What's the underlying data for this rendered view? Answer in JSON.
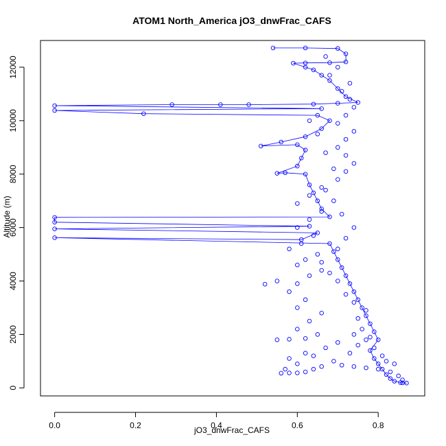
{
  "chart_data": {
    "type": "scatter",
    "title": "ATOM1 North_America jO3_dnwFrac_CAFS",
    "xlabel": "jO3_dnwFrac_CAFS",
    "ylabel": "Altitude (m)",
    "xlim": [
      -0.035,
      0.915
    ],
    "ylim": [
      -300,
      13000
    ],
    "xticks": [
      0.0,
      0.2,
      0.4,
      0.6,
      0.8
    ],
    "xtick_labels": [
      "0.0",
      "0.2",
      "0.4",
      "0.6",
      "0.8"
    ],
    "yticks": [
      0,
      2000,
      4000,
      6000,
      8000,
      10000,
      12000
    ],
    "ytick_labels": [
      "0",
      "2000",
      "4000",
      "6000",
      "8000",
      "10000",
      "12000"
    ],
    "grid": false,
    "colors": {
      "series": "#0000ff",
      "axes": "#000000"
    },
    "series": [
      {
        "marker": "open-circle",
        "lines": true,
        "points": [
          [
            0.87,
            180
          ],
          [
            0.86,
            190
          ],
          [
            0.855,
            200
          ],
          [
            0.84,
            250
          ],
          [
            0.83,
            350
          ],
          [
            0.82,
            500
          ],
          [
            0.81,
            700
          ],
          [
            0.8,
            900
          ],
          [
            0.79,
            1100
          ],
          [
            0.78,
            1400
          ],
          [
            0.8,
            1800
          ],
          [
            0.79,
            2100
          ],
          [
            0.78,
            2400
          ],
          [
            0.77,
            2700
          ],
          [
            0.76,
            3000
          ],
          [
            0.75,
            3300
          ],
          [
            0.74,
            3600
          ],
          [
            0.73,
            3900
          ],
          [
            0.72,
            4200
          ],
          [
            0.71,
            4500
          ],
          [
            0.7,
            4800
          ],
          [
            0.69,
            5100
          ],
          [
            0.68,
            5400
          ],
          [
            0.0,
            5620
          ],
          [
            0.61,
            5550
          ],
          [
            0.65,
            5800
          ],
          [
            0.0,
            5950
          ],
          [
            0.63,
            6050
          ],
          [
            0.0,
            6200
          ],
          [
            0.0,
            6380
          ],
          [
            0.68,
            6400
          ],
          [
            0.66,
            6700
          ],
          [
            0.65,
            7000
          ],
          [
            0.64,
            7300
          ],
          [
            0.63,
            7600
          ],
          [
            0.62,
            8000
          ],
          [
            0.57,
            8050
          ],
          [
            0.55,
            8030
          ],
          [
            0.6,
            8300
          ],
          [
            0.61,
            8600
          ],
          [
            0.62,
            8900
          ],
          [
            0.6,
            9100
          ],
          [
            0.51,
            9050
          ],
          [
            0.56,
            9200
          ],
          [
            0.62,
            9400
          ],
          [
            0.66,
            9700
          ],
          [
            0.68,
            10000
          ],
          [
            0.65,
            10200
          ],
          [
            0.22,
            10260
          ],
          [
            0.0,
            10380
          ],
          [
            0.66,
            10450
          ],
          [
            0.0,
            10560
          ],
          [
            0.29,
            10600
          ],
          [
            0.41,
            10600
          ],
          [
            0.48,
            10600
          ],
          [
            0.64,
            10620
          ],
          [
            0.7,
            10650
          ],
          [
            0.75,
            10680
          ],
          [
            0.72,
            10900
          ],
          [
            0.7,
            11200
          ],
          [
            0.68,
            11500
          ],
          [
            0.66,
            11700
          ],
          [
            0.64,
            11900
          ],
          [
            0.62,
            12000
          ],
          [
            0.59,
            12150
          ],
          [
            0.62,
            12160
          ],
          [
            0.68,
            12170
          ],
          [
            0.72,
            12200
          ],
          [
            0.72,
            12500
          ],
          [
            0.7,
            12700
          ],
          [
            0.62,
            12720
          ],
          [
            0.54,
            12720
          ]
        ],
        "scatter": [
          [
            0.56,
            550
          ],
          [
            0.58,
            560
          ],
          [
            0.6,
            560
          ],
          [
            0.62,
            600
          ],
          [
            0.64,
            700
          ],
          [
            0.66,
            800
          ],
          [
            0.58,
            1100
          ],
          [
            0.62,
            1300
          ],
          [
            0.55,
            1800
          ],
          [
            0.58,
            1820
          ],
          [
            0.62,
            1850
          ],
          [
            0.65,
            2000
          ],
          [
            0.6,
            2200
          ],
          [
            0.63,
            2500
          ],
          [
            0.66,
            2800
          ],
          [
            0.6,
            3000
          ],
          [
            0.62,
            3300
          ],
          [
            0.58,
            3600
          ],
          [
            0.6,
            3900
          ],
          [
            0.52,
            3880
          ],
          [
            0.55,
            4000
          ],
          [
            0.63,
            4200
          ],
          [
            0.66,
            4400
          ],
          [
            0.6,
            4600
          ],
          [
            0.62,
            4800
          ],
          [
            0.65,
            5000
          ],
          [
            0.58,
            5200
          ],
          [
            0.61,
            5400
          ],
          [
            0.64,
            5700
          ],
          [
            0.6,
            6000
          ],
          [
            0.63,
            6300
          ],
          [
            0.66,
            6600
          ],
          [
            0.6,
            6900
          ],
          [
            0.63,
            7200
          ],
          [
            0.66,
            7500
          ],
          [
            0.7,
            7800
          ],
          [
            0.72,
            8100
          ],
          [
            0.74,
            8400
          ],
          [
            0.72,
            8700
          ],
          [
            0.7,
            9000
          ],
          [
            0.72,
            9300
          ],
          [
            0.74,
            9600
          ],
          [
            0.7,
            9900
          ],
          [
            0.72,
            10200
          ],
          [
            0.74,
            10500
          ],
          [
            0.73,
            10800
          ],
          [
            0.71,
            11100
          ],
          [
            0.73,
            11400
          ],
          [
            0.68,
            11700
          ],
          [
            0.7,
            12000
          ],
          [
            0.67,
            12400
          ],
          [
            0.75,
            2600
          ],
          [
            0.77,
            2900
          ],
          [
            0.74,
            3200
          ],
          [
            0.72,
            3500
          ],
          [
            0.7,
            4000
          ],
          [
            0.68,
            4300
          ],
          [
            0.66,
            4700
          ],
          [
            0.7,
            5200
          ],
          [
            0.72,
            5600
          ],
          [
            0.74,
            6000
          ],
          [
            0.71,
            6500
          ],
          [
            0.69,
            7000
          ],
          [
            0.67,
            7400
          ],
          [
            0.69,
            8200
          ],
          [
            0.67,
            8800
          ],
          [
            0.65,
            9500
          ],
          [
            0.63,
            10000
          ],
          [
            0.82,
            1000
          ],
          [
            0.84,
            900
          ],
          [
            0.8,
            700
          ],
          [
            0.77,
            750
          ],
          [
            0.74,
            800
          ],
          [
            0.71,
            850
          ],
          [
            0.69,
            1000
          ],
          [
            0.73,
            1300
          ],
          [
            0.75,
            1600
          ],
          [
            0.78,
            1900
          ],
          [
            0.76,
            2200
          ],
          [
            0.74,
            2000
          ],
          [
            0.7,
            1700
          ],
          [
            0.67,
            1500
          ],
          [
            0.64,
            1200
          ],
          [
            0.6,
            900
          ],
          [
            0.57,
            700
          ],
          [
            0.86,
            300
          ],
          [
            0.85,
            450
          ],
          [
            0.83,
            600
          ],
          [
            0.81,
            1200
          ],
          [
            0.79,
            1500
          ],
          [
            0.77,
            1800
          ]
        ]
      }
    ]
  }
}
